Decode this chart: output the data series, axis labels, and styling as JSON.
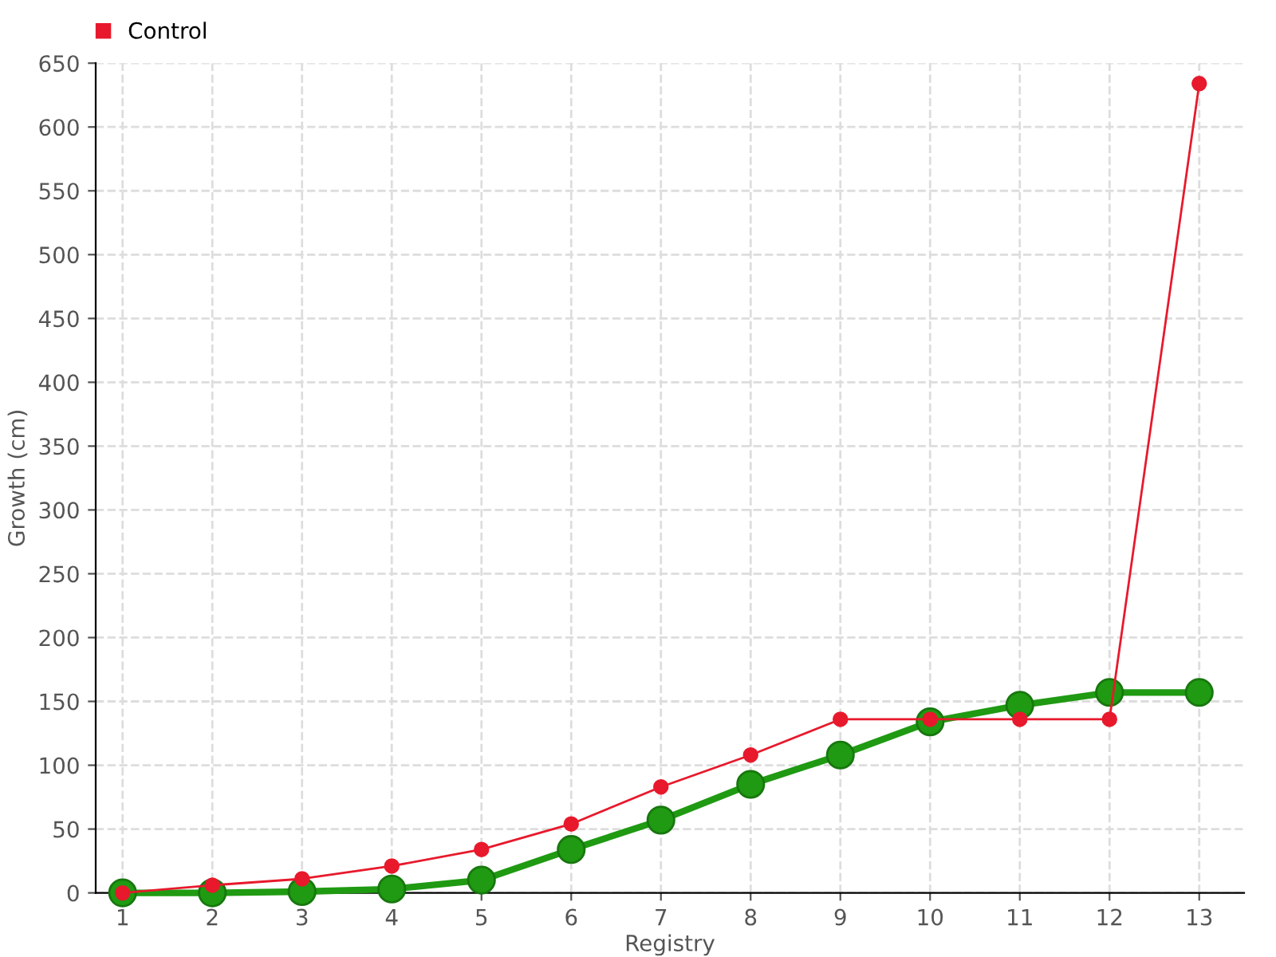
{
  "chart_data": {
    "type": "line",
    "xlabel": "Registry",
    "ylabel": "Growth (cm)",
    "categories": [
      "1",
      "2",
      "3",
      "4",
      "5",
      "6",
      "7",
      "8",
      "9",
      "10",
      "11",
      "12",
      "13"
    ],
    "series": [
      {
        "color": "#1f9a12",
        "values": [
          0,
          0,
          1,
          3,
          10,
          34,
          57,
          85,
          108,
          134,
          147,
          157,
          157
        ]
      },
      {
        "name": "Control",
        "color": "#e8192c",
        "values": [
          0,
          6,
          11,
          21,
          34,
          54,
          83,
          108,
          136,
          136,
          136,
          136,
          634
        ]
      }
    ],
    "ylim": [
      0,
      650
    ],
    "yticks": [
      0,
      50,
      100,
      150,
      200,
      250,
      300,
      350,
      400,
      450,
      500,
      550,
      600,
      650
    ],
    "grid": true,
    "legend": "top left",
    "marker": "circle",
    "line_style": "solid"
  }
}
